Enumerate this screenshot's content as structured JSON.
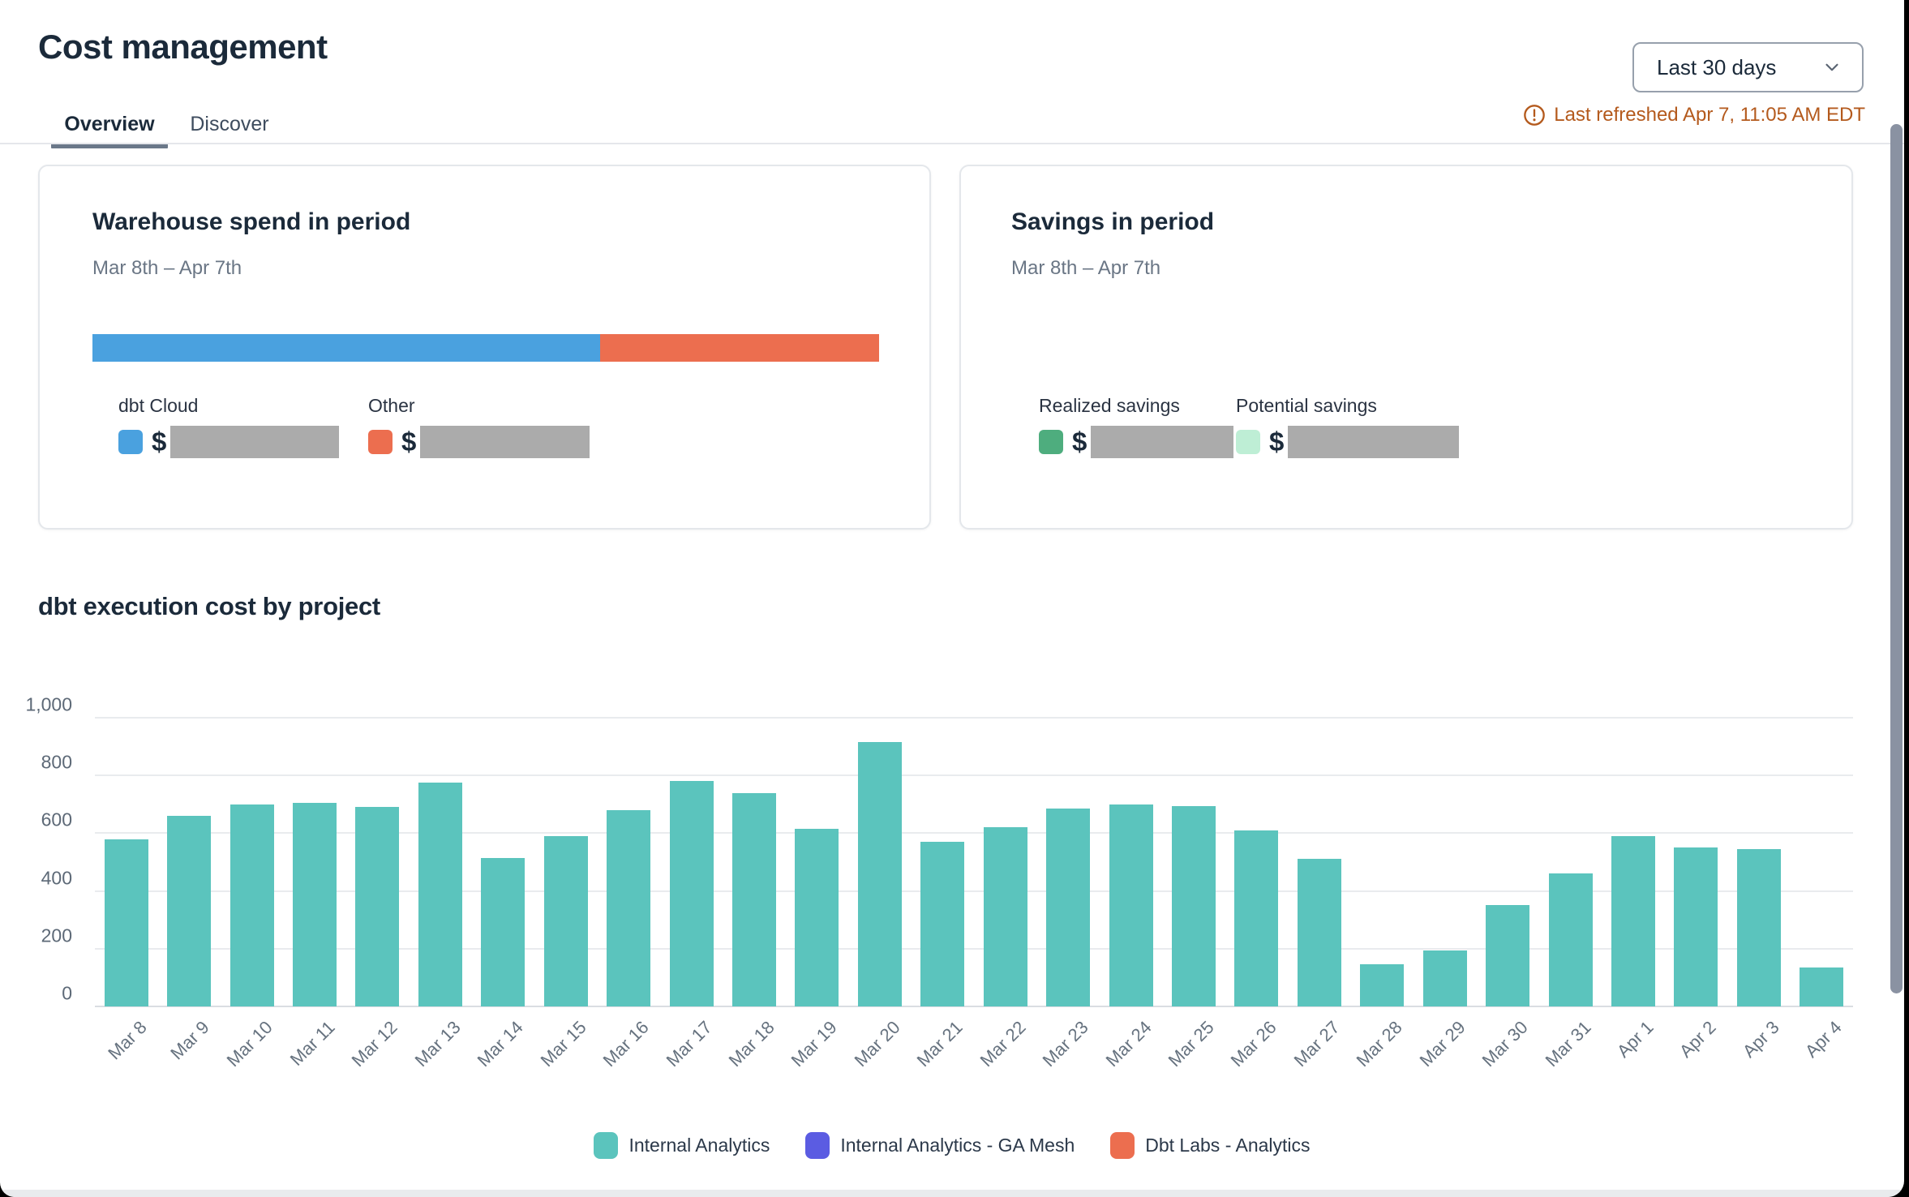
{
  "page": {
    "title": "Cost management"
  },
  "controls": {
    "date_range": "Last 30 days",
    "last_refreshed": "Last refreshed Apr 7, 11:05 AM EDT"
  },
  "tabs": [
    {
      "label": "Overview",
      "active": true
    },
    {
      "label": "Discover",
      "active": false
    }
  ],
  "warehouse_card": {
    "title": "Warehouse spend in period",
    "subtitle": "Mar 8th – Apr 7th",
    "bar_segments": [
      {
        "label": "dbt Cloud",
        "color": "#4AA1DF",
        "percent": 64.5
      },
      {
        "label": "Other",
        "color": "#EC6E4F",
        "percent": 35.5
      }
    ],
    "entries": [
      {
        "label": "dbt Cloud",
        "color": "#4AA1DF",
        "currency": "$",
        "value_redacted": true
      },
      {
        "label": "Other",
        "color": "#EC6E4F",
        "currency": "$",
        "value_redacted": true
      }
    ]
  },
  "savings_card": {
    "title": "Savings in period",
    "subtitle": "Mar 8th – Apr 7th",
    "entries": [
      {
        "label": "Realized savings",
        "color": "#4EAD7E",
        "currency": "$",
        "value_redacted": true
      },
      {
        "label": "Potential savings",
        "color": "#BEEED5",
        "currency": "$",
        "value_redacted": true
      }
    ]
  },
  "chart_data": {
    "type": "bar",
    "title": "dbt execution cost by project",
    "categories": [
      "Mar 8",
      "Mar 9",
      "Mar 10",
      "Mar 11",
      "Mar 12",
      "Mar 13",
      "Mar 14",
      "Mar 15",
      "Mar 16",
      "Mar 17",
      "Mar 18",
      "Mar 19",
      "Mar 20",
      "Mar 21",
      "Mar 22",
      "Mar 23",
      "Mar 24",
      "Mar 25",
      "Mar 26",
      "Mar 27",
      "Mar 28",
      "Mar 29",
      "Mar 30",
      "Mar 31",
      "Apr 1",
      "Apr 2",
      "Apr 3",
      "Apr 4"
    ],
    "series": [
      {
        "name": "Internal Analytics",
        "color": "#5BC4BD",
        "values": [
          580,
          660,
          700,
          705,
          690,
          775,
          515,
          590,
          680,
          780,
          740,
          615,
          915,
          570,
          620,
          685,
          700,
          695,
          610,
          510,
          145,
          195,
          350,
          460,
          590,
          550,
          545,
          135
        ]
      },
      {
        "name": "Internal Analytics - GA Mesh",
        "color": "#5B5CE2",
        "values": []
      },
      {
        "name": "Dbt Labs - Analytics",
        "color": "#EC6E4F",
        "values": []
      }
    ],
    "xlabel": "",
    "ylabel": "",
    "ylim": [
      0,
      1000
    ],
    "yticks": [
      {
        "value": 0,
        "label": "0"
      },
      {
        "value": 200,
        "label": "200"
      },
      {
        "value": 400,
        "label": "400"
      },
      {
        "value": 600,
        "label": "600"
      },
      {
        "value": 800,
        "label": "800"
      },
      {
        "value": 1000,
        "label": "1,000"
      }
    ],
    "grid": true,
    "legend_position": "bottom"
  }
}
